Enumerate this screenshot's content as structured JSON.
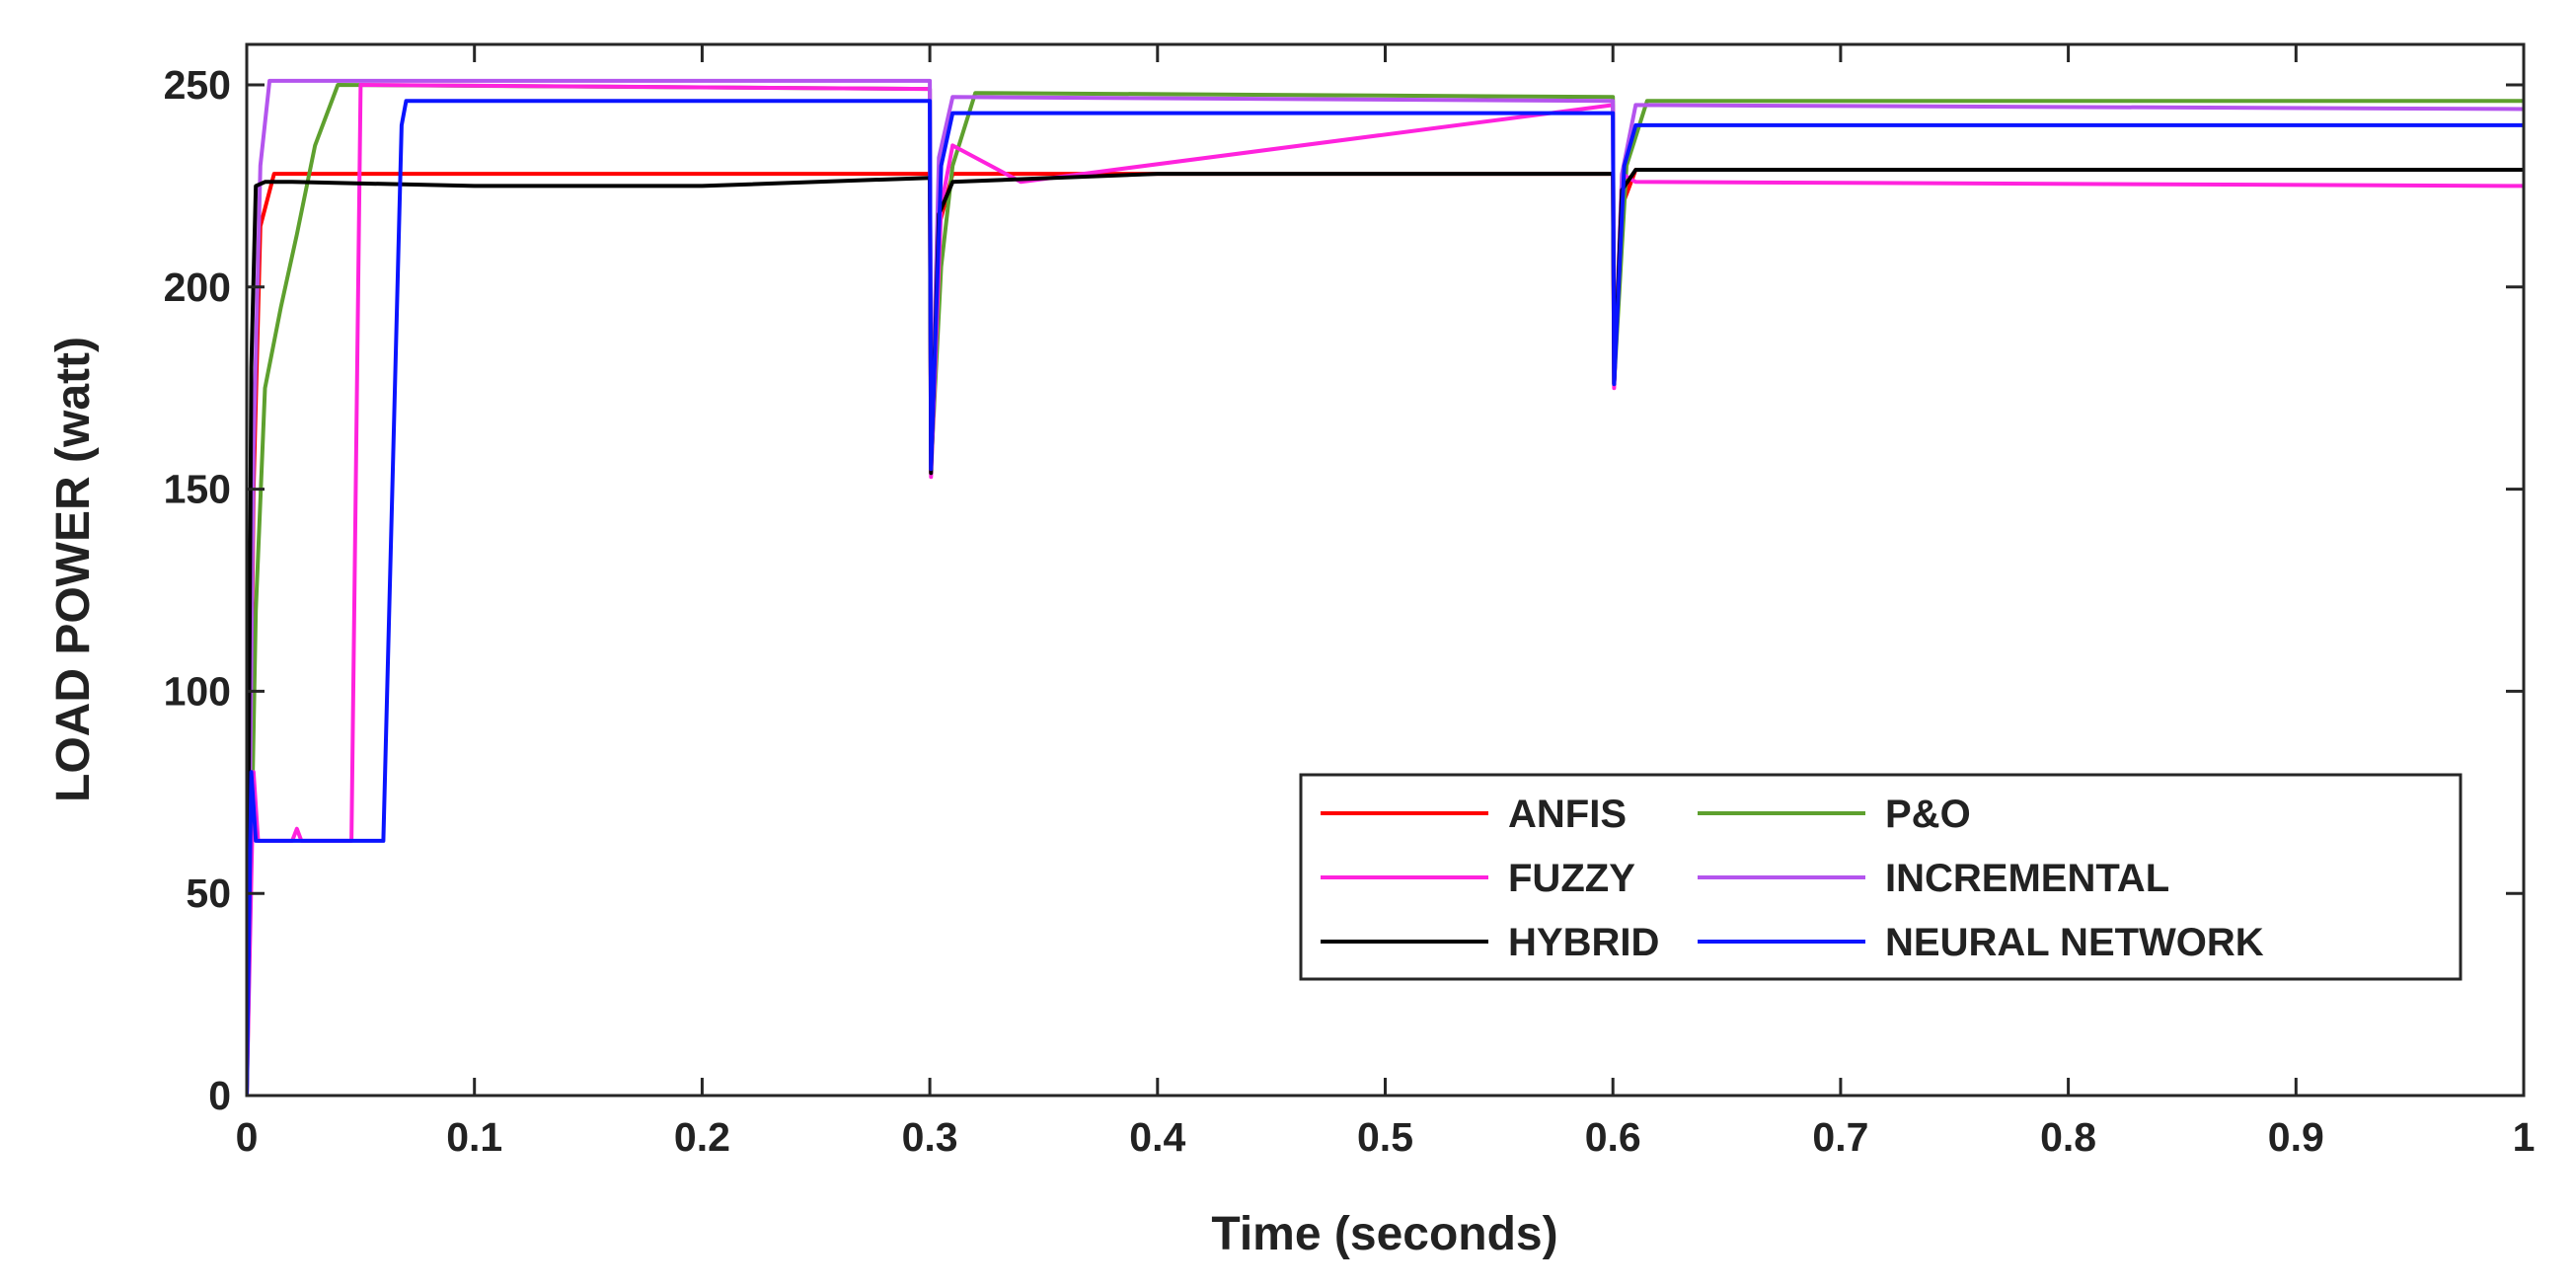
{
  "chart_data": {
    "type": "line",
    "title": "",
    "xlabel": "Time (seconds)",
    "ylabel": "LOAD POWER (watt)",
    "xlim": [
      0,
      1
    ],
    "ylim": [
      0,
      260
    ],
    "x_ticks": [
      0,
      0.1,
      0.2,
      0.3,
      0.4,
      0.5,
      0.6,
      0.7,
      0.8,
      0.9,
      1
    ],
    "x_tick_labels": [
      "0",
      "0.1",
      "0.2",
      "0.3",
      "0.4",
      "0.5",
      "0.6",
      "0.7",
      "0.8",
      "0.9",
      "1"
    ],
    "y_ticks": [
      0,
      50,
      100,
      150,
      200,
      250
    ],
    "y_tick_labels": [
      "0",
      "50",
      "100",
      "150",
      "200",
      "250"
    ],
    "grid": false,
    "legend_position": "bottom-right",
    "legend_columns": 2,
    "series": [
      {
        "name": "ANFIS",
        "color": "#ff0000",
        "x": [
          0,
          0.003,
          0.006,
          0.012,
          0.3,
          0.3005,
          0.304,
          0.31,
          0.6,
          0.6005,
          0.604,
          0.61,
          1
        ],
        "y": [
          0,
          150,
          215,
          228,
          228,
          154,
          215,
          228,
          228,
          176,
          220,
          229,
          229
        ]
      },
      {
        "name": "P&O",
        "color": "#5ea02e",
        "x": [
          0,
          0.004,
          0.008,
          0.015,
          0.022,
          0.03,
          0.04,
          0.3,
          0.3005,
          0.305,
          0.31,
          0.32,
          0.6,
          0.6005,
          0.606,
          0.615,
          1
        ],
        "y": [
          0,
          120,
          175,
          195,
          213,
          235,
          250,
          249,
          155,
          205,
          230,
          248,
          247,
          176,
          230,
          246,
          246
        ]
      },
      {
        "name": "FUZZY",
        "color": "#ff22dd",
        "x": [
          0,
          0.003,
          0.005,
          0.02,
          0.022,
          0.024,
          0.046,
          0.05,
          0.3,
          0.3005,
          0.305,
          0.31,
          0.34,
          0.6,
          0.6005,
          0.604,
          0.61,
          1
        ],
        "y": [
          0,
          80,
          63,
          63,
          66,
          63,
          63,
          250,
          249,
          153,
          220,
          235,
          226,
          245,
          175,
          228,
          226,
          225
        ]
      },
      {
        "name": "INCREMENTAL",
        "color": "#b454ee",
        "x": [
          0,
          0.003,
          0.006,
          0.01,
          0.3,
          0.3005,
          0.304,
          0.31,
          0.6,
          0.6005,
          0.604,
          0.61,
          1
        ],
        "y": [
          0,
          160,
          230,
          251,
          251,
          155,
          232,
          247,
          246,
          176,
          228,
          245,
          244
        ]
      },
      {
        "name": "HYBRID",
        "color": "#000000",
        "x": [
          0,
          0.002,
          0.004,
          0.008,
          0.02,
          0.1,
          0.2,
          0.3,
          0.3005,
          0.304,
          0.31,
          0.4,
          0.6,
          0.6005,
          0.604,
          0.61,
          1
        ],
        "y": [
          0,
          180,
          225,
          226,
          226,
          225,
          225,
          227,
          154,
          218,
          226,
          228,
          228,
          176,
          224,
          229,
          229
        ]
      },
      {
        "name": "NEURAL NETWORK",
        "color": "#0a14ff",
        "x": [
          0,
          0.002,
          0.004,
          0.06,
          0.068,
          0.07,
          0.3,
          0.3005,
          0.305,
          0.31,
          0.6,
          0.6005,
          0.605,
          0.61,
          1
        ],
        "y": [
          0,
          80,
          63,
          63,
          240,
          246,
          246,
          155,
          230,
          243,
          243,
          176,
          230,
          240,
          240
        ]
      }
    ]
  }
}
